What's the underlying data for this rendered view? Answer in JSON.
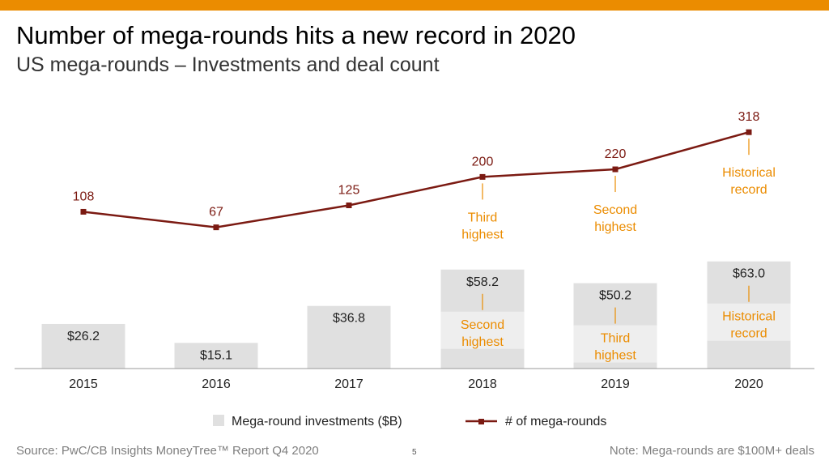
{
  "title": "Number of mega-rounds hits a new record in 2020",
  "subtitle": "US mega-rounds – Investments and deal count",
  "footer": {
    "source": "Source: PwC/CB Insights MoneyTree™ Report Q4 2020",
    "page": "5",
    "note": "Note: Mega-rounds are $100M+ deals"
  },
  "colors": {
    "accent_bar": "#eb8c00",
    "bar": "#e0e0e0",
    "bar_highlight": "#eeeeee",
    "line": "#7b1a12",
    "annotation": "#eb8c00"
  },
  "chart_data": {
    "type": "bar",
    "categories": [
      "2015",
      "2016",
      "2017",
      "2018",
      "2019",
      "2020"
    ],
    "series": [
      {
        "name": "Mega-round investments ($B)",
        "type": "bar",
        "values": [
          26.2,
          15.1,
          36.8,
          58.2,
          50.2,
          63.0
        ],
        "labels": [
          "$26.2",
          "$15.1",
          "$36.8",
          "$58.2",
          "$50.2",
          "$63.0"
        ]
      },
      {
        "name": "# of mega-rounds",
        "type": "line",
        "values": [
          108,
          67,
          125,
          200,
          220,
          318
        ],
        "labels": [
          "108",
          "67",
          "125",
          "200",
          "220",
          "318"
        ]
      }
    ],
    "bar_annotations": [
      {
        "category": "2018",
        "text": [
          "Second",
          "highest"
        ]
      },
      {
        "category": "2019",
        "text": [
          "Third",
          "highest"
        ]
      },
      {
        "category": "2020",
        "text": [
          "Historical",
          "record"
        ]
      }
    ],
    "line_annotations": [
      {
        "category": "2018",
        "text": [
          "Third",
          "highest"
        ]
      },
      {
        "category": "2019",
        "text": [
          "Second",
          "highest"
        ]
      },
      {
        "category": "2020",
        "text": [
          "Historical",
          "record"
        ]
      }
    ],
    "legend_position": "bottom-center",
    "grid": false
  }
}
